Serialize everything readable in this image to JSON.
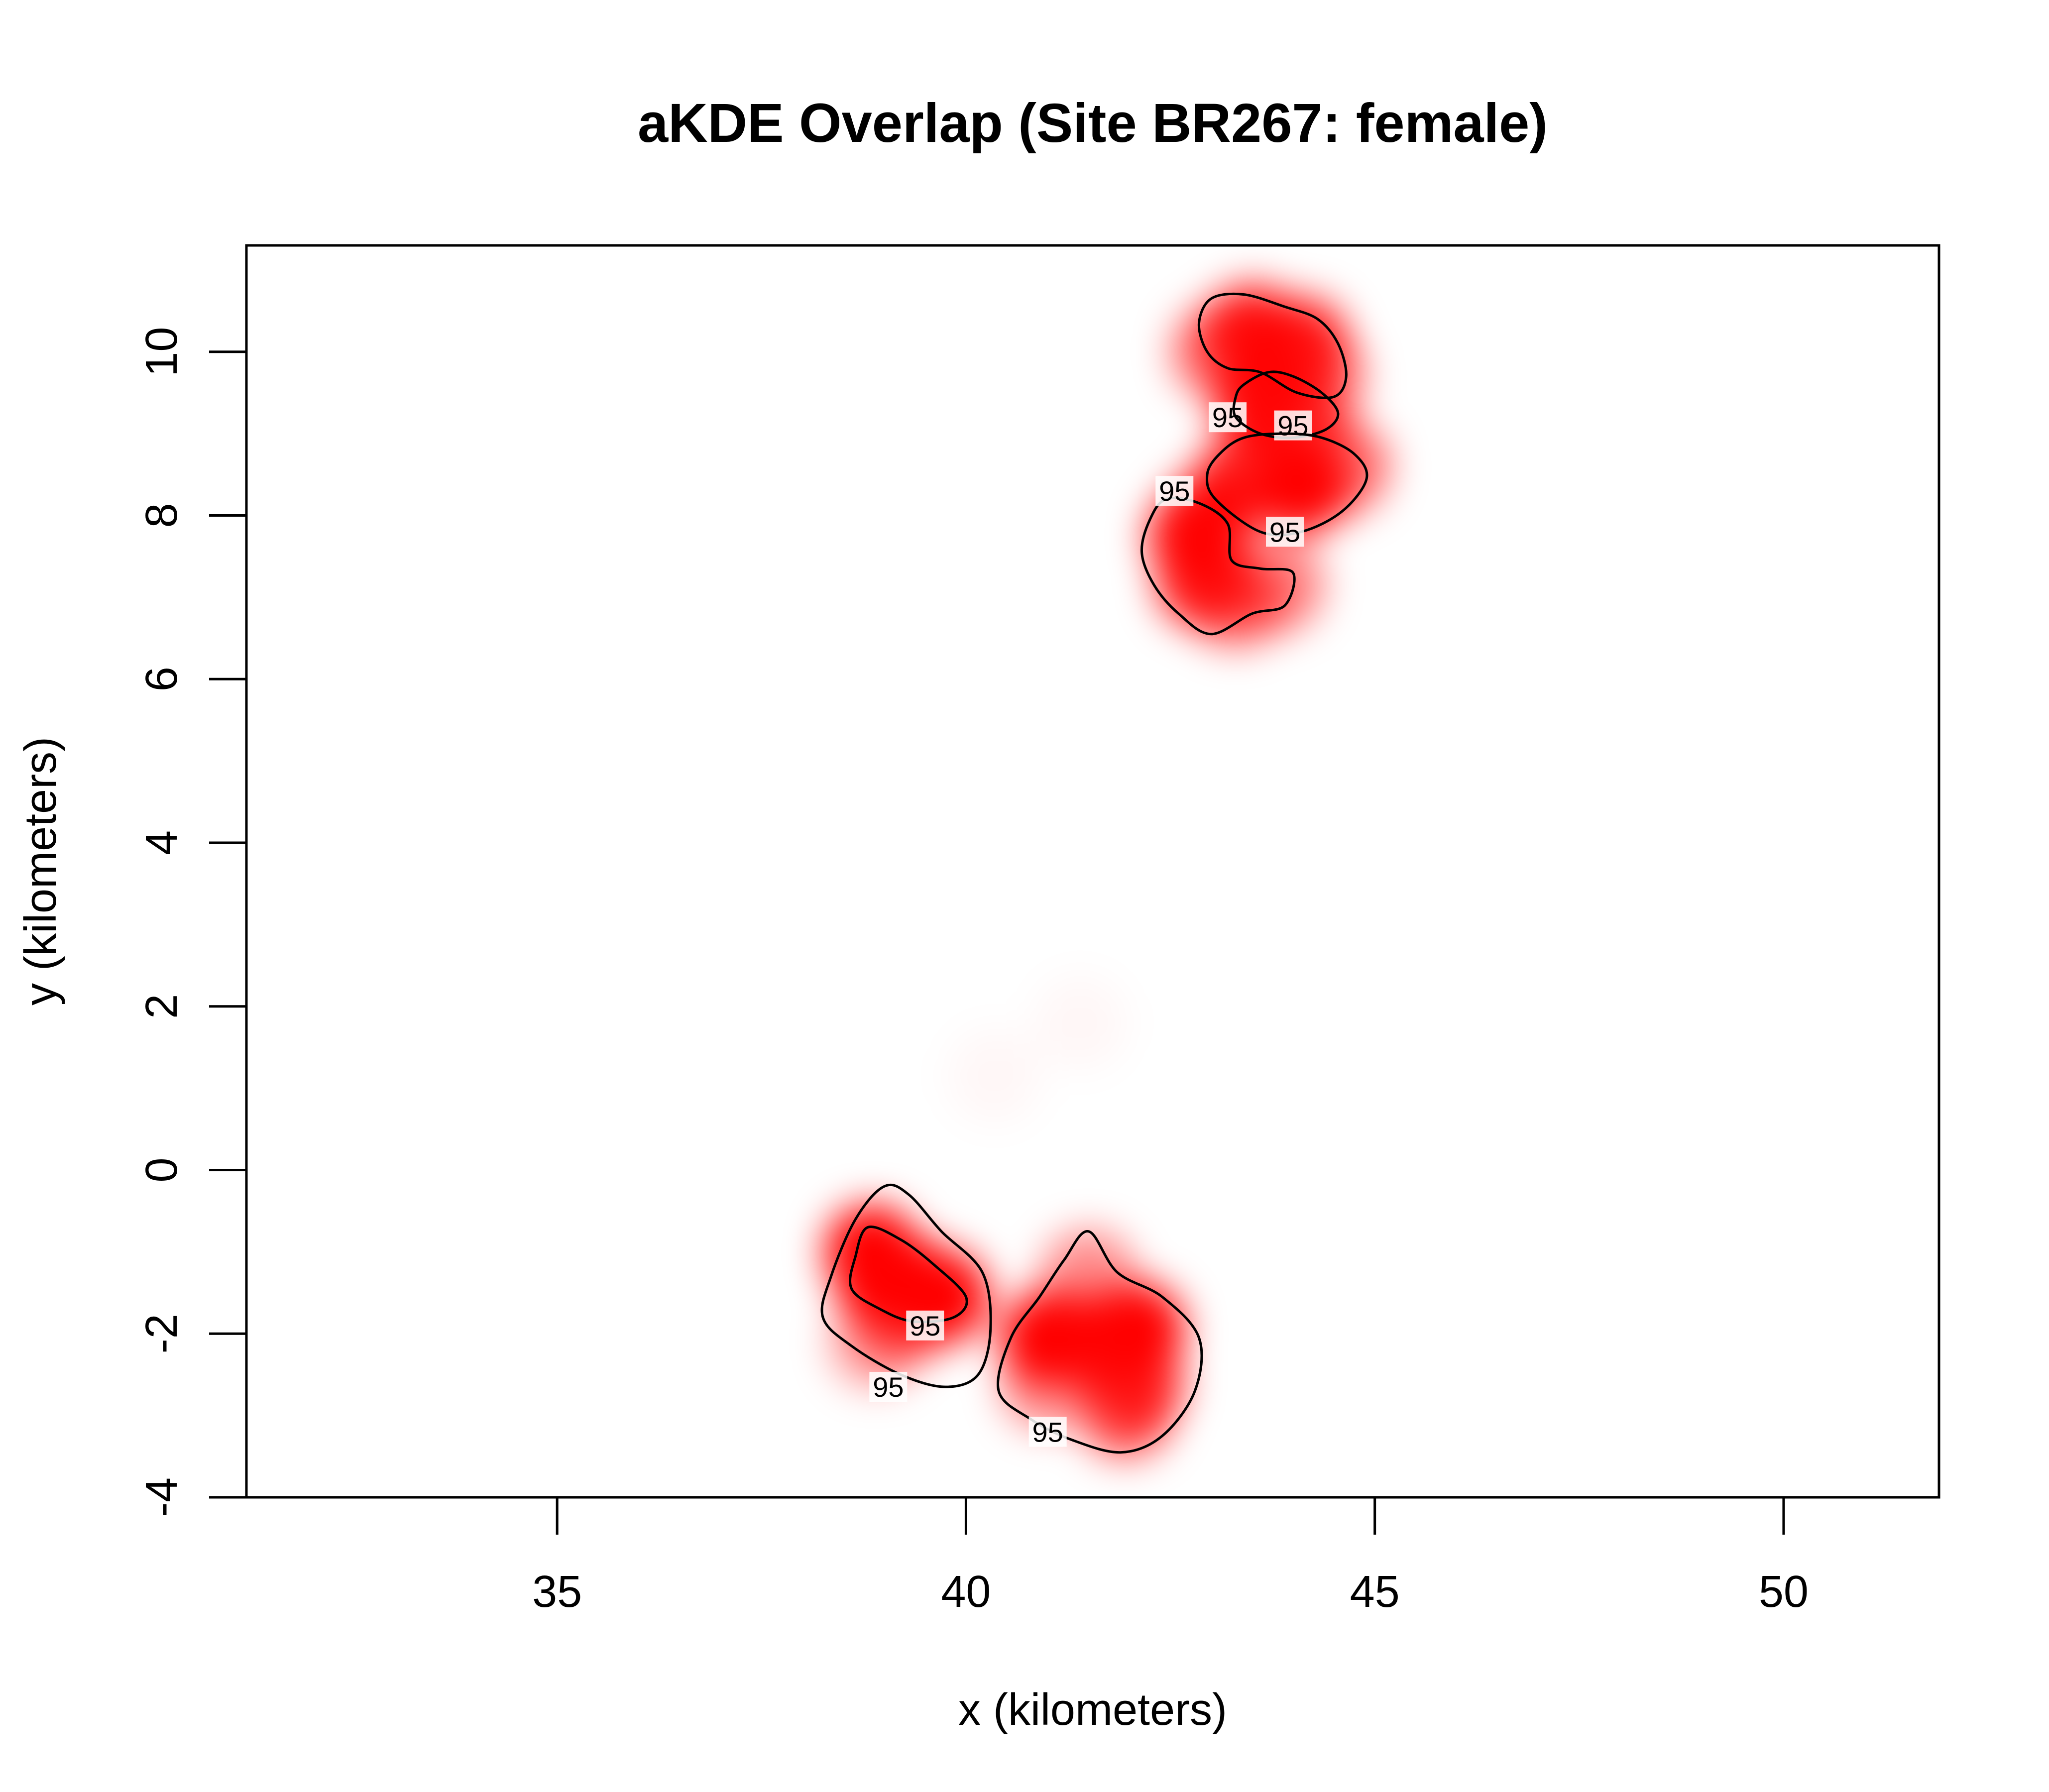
{
  "chart_data": {
    "type": "heatmap",
    "title": "aKDE Overlap (Site BR267: female)",
    "xlabel": "x (kilometers)",
    "ylabel": "y (kilometers)",
    "xlim": [
      31.2,
      51.9
    ],
    "ylim": [
      -4.0,
      11.3
    ],
    "xticks": [
      35,
      40,
      45,
      50
    ],
    "yticks": [
      -4,
      -2,
      0,
      2,
      4,
      6,
      8,
      10
    ],
    "grid": false,
    "legend": "none",
    "fill_color": "#ff0000",
    "contour_color": "#000000",
    "contour_level_label": "95",
    "density_peaks": [
      {
        "x": 43.5,
        "y": 10.25,
        "w": 0.9
      },
      {
        "x": 44.1,
        "y": 10.1,
        "w": 0.85
      },
      {
        "x": 43.1,
        "y": 10.0,
        "w": 0.6
      },
      {
        "x": 44.3,
        "y": 9.7,
        "w": 0.55
      },
      {
        "x": 43.6,
        "y": 9.4,
        "w": 0.95
      },
      {
        "x": 44.1,
        "y": 9.15,
        "w": 0.7
      },
      {
        "x": 43.4,
        "y": 8.45,
        "w": 0.85
      },
      {
        "x": 44.1,
        "y": 8.35,
        "w": 1.0
      },
      {
        "x": 44.6,
        "y": 8.6,
        "w": 0.6
      },
      {
        "x": 43.0,
        "y": 8.0,
        "w": 0.75
      },
      {
        "x": 42.8,
        "y": 7.75,
        "w": 0.95
      },
      {
        "x": 42.9,
        "y": 7.2,
        "w": 0.85
      },
      {
        "x": 43.3,
        "y": 6.95,
        "w": 0.55
      },
      {
        "x": 43.8,
        "y": 7.15,
        "w": 0.5
      },
      {
        "x": 38.85,
        "y": -1.0,
        "w": 1.0
      },
      {
        "x": 38.95,
        "y": -1.3,
        "w": 1.0
      },
      {
        "x": 39.35,
        "y": -1.4,
        "w": 1.0
      },
      {
        "x": 39.7,
        "y": -1.55,
        "w": 1.0
      },
      {
        "x": 39.2,
        "y": -1.8,
        "w": 0.6
      },
      {
        "x": 38.9,
        "y": -2.1,
        "w": 0.35
      },
      {
        "x": 41.0,
        "y": -2.05,
        "w": 1.0
      },
      {
        "x": 41.5,
        "y": -2.1,
        "w": 0.85
      },
      {
        "x": 42.1,
        "y": -1.95,
        "w": 1.0
      },
      {
        "x": 42.1,
        "y": -2.6,
        "w": 0.75
      },
      {
        "x": 41.95,
        "y": -2.95,
        "w": 0.65
      },
      {
        "x": 41.5,
        "y": -1.3,
        "w": 0.45
      },
      {
        "x": 41.0,
        "y": -2.6,
        "w": 0.45
      },
      {
        "x": 41.4,
        "y": 1.8,
        "w": 0.03
      },
      {
        "x": 40.35,
        "y": 1.15,
        "w": 0.03
      }
    ],
    "contours": [
      {
        "label": "95",
        "label_at": [
          43.2,
          9.2
        ],
        "points": [
          [
            43.0,
            10.65
          ],
          [
            43.4,
            10.7
          ],
          [
            43.9,
            10.55
          ],
          [
            44.3,
            10.4
          ],
          [
            44.55,
            10.1
          ],
          [
            44.65,
            9.7
          ],
          [
            44.5,
            9.45
          ],
          [
            44.05,
            9.5
          ],
          [
            43.6,
            9.75
          ],
          [
            43.2,
            9.8
          ],
          [
            42.95,
            10.0
          ],
          [
            42.85,
            10.35
          ]
        ]
      },
      {
        "label": "95",
        "label_at": [
          44.0,
          9.1
        ],
        "points": [
          [
            43.4,
            9.6
          ],
          [
            43.7,
            9.75
          ],
          [
            44.0,
            9.7
          ],
          [
            44.35,
            9.5
          ],
          [
            44.55,
            9.25
          ],
          [
            44.4,
            9.05
          ],
          [
            44.0,
            8.95
          ],
          [
            43.6,
            9.0
          ],
          [
            43.3,
            9.2
          ],
          [
            43.3,
            9.45
          ]
        ]
      },
      {
        "label": "95",
        "label_at": [
          43.9,
          7.8
        ],
        "points": [
          [
            43.1,
            8.75
          ],
          [
            43.4,
            8.95
          ],
          [
            43.9,
            9.0
          ],
          [
            44.35,
            8.95
          ],
          [
            44.75,
            8.75
          ],
          [
            44.9,
            8.45
          ],
          [
            44.6,
            8.05
          ],
          [
            44.1,
            7.8
          ],
          [
            43.6,
            7.8
          ],
          [
            43.05,
            8.2
          ],
          [
            42.95,
            8.5
          ]
        ]
      },
      {
        "label": "95",
        "label_at": [
          42.55,
          8.3
        ],
        "points": [
          [
            42.45,
            8.2
          ],
          [
            42.85,
            8.15
          ],
          [
            43.2,
            7.9
          ],
          [
            43.25,
            7.45
          ],
          [
            43.6,
            7.35
          ],
          [
            44.0,
            7.3
          ],
          [
            43.9,
            6.9
          ],
          [
            43.5,
            6.8
          ],
          [
            43.0,
            6.55
          ],
          [
            42.6,
            6.8
          ],
          [
            42.3,
            7.15
          ],
          [
            42.15,
            7.55
          ],
          [
            42.25,
            7.95
          ]
        ]
      },
      {
        "label": "95",
        "label_at": [
          39.05,
          -2.65
        ],
        "points": [
          [
            39.0,
            -0.2
          ],
          [
            39.3,
            -0.3
          ],
          [
            39.7,
            -0.75
          ],
          [
            40.2,
            -1.25
          ],
          [
            40.3,
            -1.95
          ],
          [
            40.15,
            -2.5
          ],
          [
            39.75,
            -2.65
          ],
          [
            39.2,
            -2.5
          ],
          [
            38.6,
            -2.15
          ],
          [
            38.25,
            -1.8
          ],
          [
            38.35,
            -1.3
          ],
          [
            38.65,
            -0.6
          ]
        ]
      },
      {
        "label": "95",
        "label_at": [
          39.5,
          -1.9
        ],
        "points": [
          [
            38.8,
            -0.7
          ],
          [
            39.2,
            -0.85
          ],
          [
            39.6,
            -1.15
          ],
          [
            40.0,
            -1.55
          ],
          [
            39.85,
            -1.8
          ],
          [
            39.35,
            -1.85
          ],
          [
            38.95,
            -1.7
          ],
          [
            38.6,
            -1.45
          ],
          [
            38.65,
            -1.05
          ]
        ]
      },
      {
        "label": "95",
        "label_at": [
          41.0,
          -3.2
        ],
        "points": [
          [
            41.5,
            -0.75
          ],
          [
            41.85,
            -1.25
          ],
          [
            42.4,
            -1.55
          ],
          [
            42.85,
            -2.05
          ],
          [
            42.8,
            -2.7
          ],
          [
            42.4,
            -3.25
          ],
          [
            41.9,
            -3.45
          ],
          [
            41.3,
            -3.3
          ],
          [
            40.8,
            -3.05
          ],
          [
            40.4,
            -2.7
          ],
          [
            40.55,
            -2.05
          ],
          [
            40.9,
            -1.55
          ],
          [
            41.2,
            -1.1
          ]
        ]
      }
    ]
  }
}
